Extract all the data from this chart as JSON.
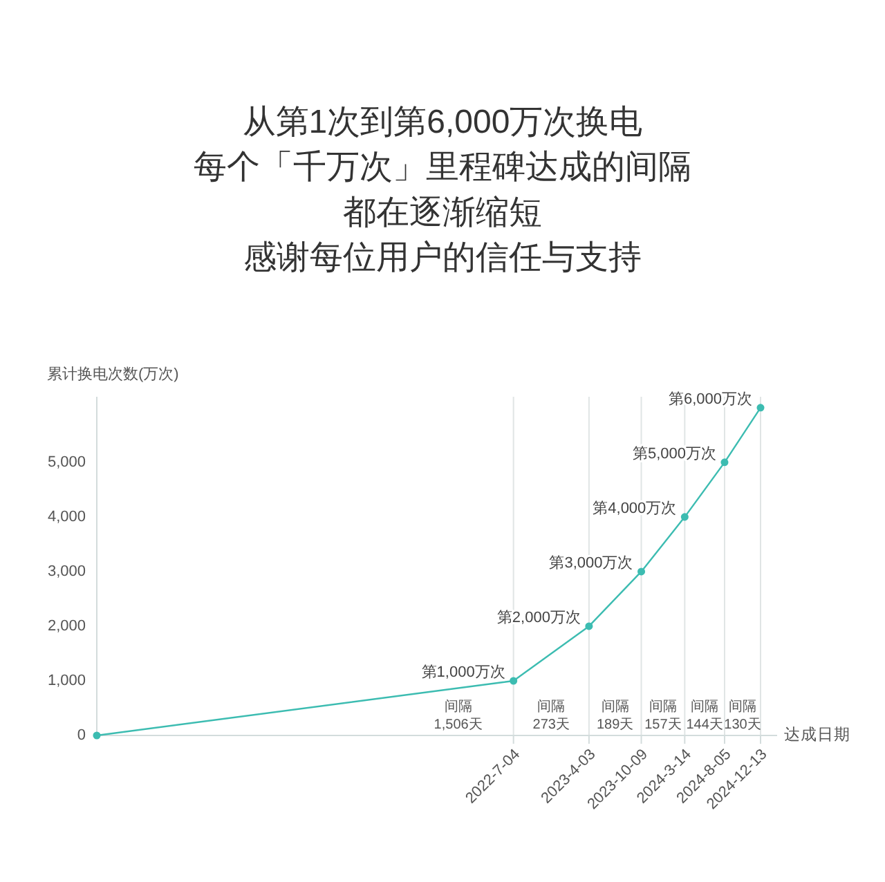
{
  "chart_data": {
    "type": "line",
    "title": "从第1次到第6,000万次换电",
    "subtitle": "每个「千万次」里程碑达成的间隔都在逐渐缩短",
    "xlabel": "达成日期",
    "ylabel": "累计换电次数(万次)",
    "x": [
      "2018-05-20",
      "2022-07-04",
      "2023-04-03",
      "2023-10-09",
      "2024-03-14",
      "2024-08-05",
      "2024-12-13"
    ],
    "values": [
      0,
      1000,
      2000,
      3000,
      4000,
      5000,
      6000
    ],
    "value_labels": [
      null,
      "第1,000万次",
      "第2,000万次",
      "第3,000万次",
      "第4,000万次",
      "第5,000万次",
      "第6,000万次"
    ],
    "color": "#3cbcb1",
    "marker": "circle",
    "line_style": "solid",
    "grid": "x",
    "xlim": [
      "2018-05-20",
      "2025-02-11"
    ],
    "xticks": [
      {
        "value": "2022-07-04",
        "label": "2022-7-04"
      },
      {
        "value": "2023-04-03",
        "label": "2023-4-03"
      },
      {
        "value": "2023-10-09",
        "label": "2023-10-09"
      },
      {
        "value": "2024-03-14",
        "label": "2024-3-14"
      },
      {
        "value": "2024-08-05",
        "label": "2024-8-05"
      },
      {
        "value": "2024-12-13",
        "label": "2024-12-13"
      }
    ],
    "ylim": [
      0,
      6200
    ],
    "yticks": [
      0,
      {
        "value": 1000,
        "label": "1,000"
      },
      {
        "value": 2000,
        "label": "2,000"
      },
      {
        "value": 3000,
        "label": "3,000"
      },
      {
        "value": 4000,
        "label": "4,000"
      },
      {
        "value": 5000,
        "label": "5,000"
      }
    ],
    "annotations": [
      "感谢每位用户的信任与支持",
      "间隔\n1,506天",
      "间隔\n273天",
      "间隔\n189天",
      "间隔\n157天",
      "间隔\n144天",
      "间隔\n130天"
    ]
  }
}
